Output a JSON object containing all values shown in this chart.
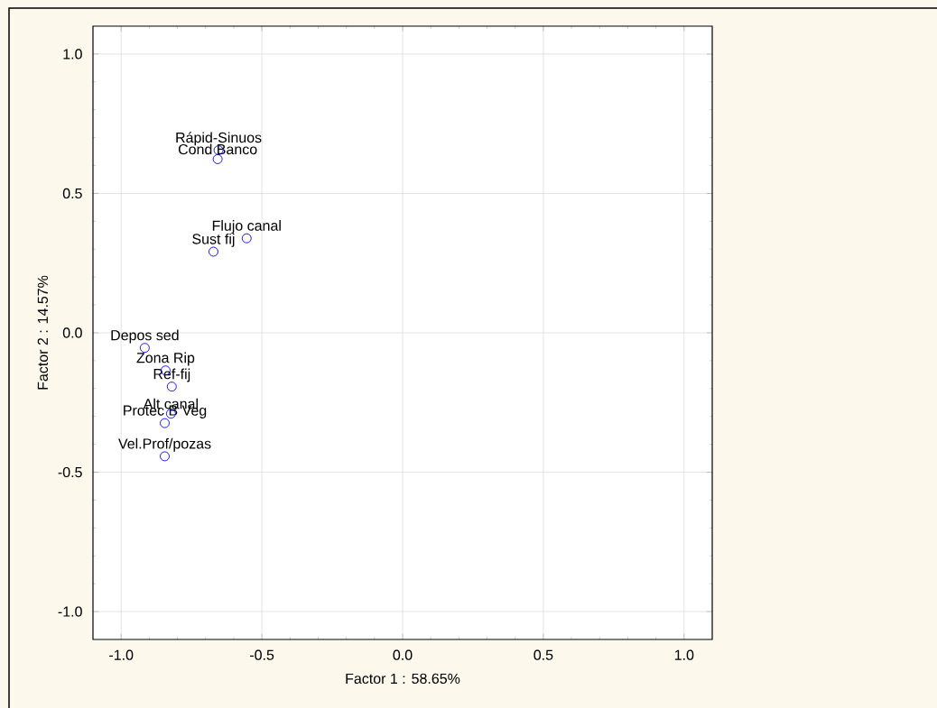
{
  "chart_data": {
    "type": "scatter",
    "xlabel": "Factor 1 : 58.65%",
    "ylabel": "Factor 2 : 14.57%",
    "x": [
      -0.654,
      -0.657,
      -0.554,
      -0.672,
      -0.916,
      -0.842,
      -0.82,
      -0.823,
      -0.845,
      -0.845
    ],
    "series": [
      {
        "color": "#0000ff",
        "values": [
          0.655,
          0.623,
          0.339,
          0.291,
          -0.054,
          -0.135,
          -0.193,
          -0.29,
          -0.324,
          -0.443
        ]
      }
    ],
    "annotations": [
      {
        "text": "Rápid-Sinuos",
        "x": -0.654,
        "y": 0.655
      },
      {
        "text": "Cond Banco",
        "x": -0.657,
        "y": 0.623
      },
      {
        "text": "Flujo canal",
        "x": -0.554,
        "y": 0.339
      },
      {
        "text": "Sust fij",
        "x": -0.672,
        "y": 0.291
      },
      {
        "text": "Depos sed",
        "x": -0.916,
        "y": -0.054
      },
      {
        "text": "Zona Rip",
        "x": -0.842,
        "y": -0.135
      },
      {
        "text": "Ref-fij",
        "x": -0.82,
        "y": -0.193
      },
      {
        "text": "Alt canal",
        "x": -0.823,
        "y": -0.29
      },
      {
        "text": "Protec B Veg",
        "x": -0.845,
        "y": -0.324
      },
      {
        "text": "Vel.Prof/pozas",
        "x": -0.845,
        "y": -0.443
      }
    ],
    "xlim": [
      -1.1,
      1.1
    ],
    "ylim": [
      -1.1,
      1.1
    ],
    "xticks": [
      {
        "value": -1,
        "label": "-1.0"
      },
      {
        "value": -0.5,
        "label": "-0.5"
      },
      {
        "value": 0,
        "label": "0.0"
      },
      {
        "value": 0.5,
        "label": "0.5"
      },
      {
        "value": 1,
        "label": "1.0"
      }
    ],
    "yticks": [
      {
        "value": -1,
        "label": "-1.0"
      },
      {
        "value": -0.5,
        "label": "-0.5"
      },
      {
        "value": 0,
        "label": "0.0"
      },
      {
        "value": 0.5,
        "label": "0.5"
      },
      {
        "value": 1,
        "label": "1.0"
      }
    ],
    "grid": true,
    "marker": "circle"
  }
}
